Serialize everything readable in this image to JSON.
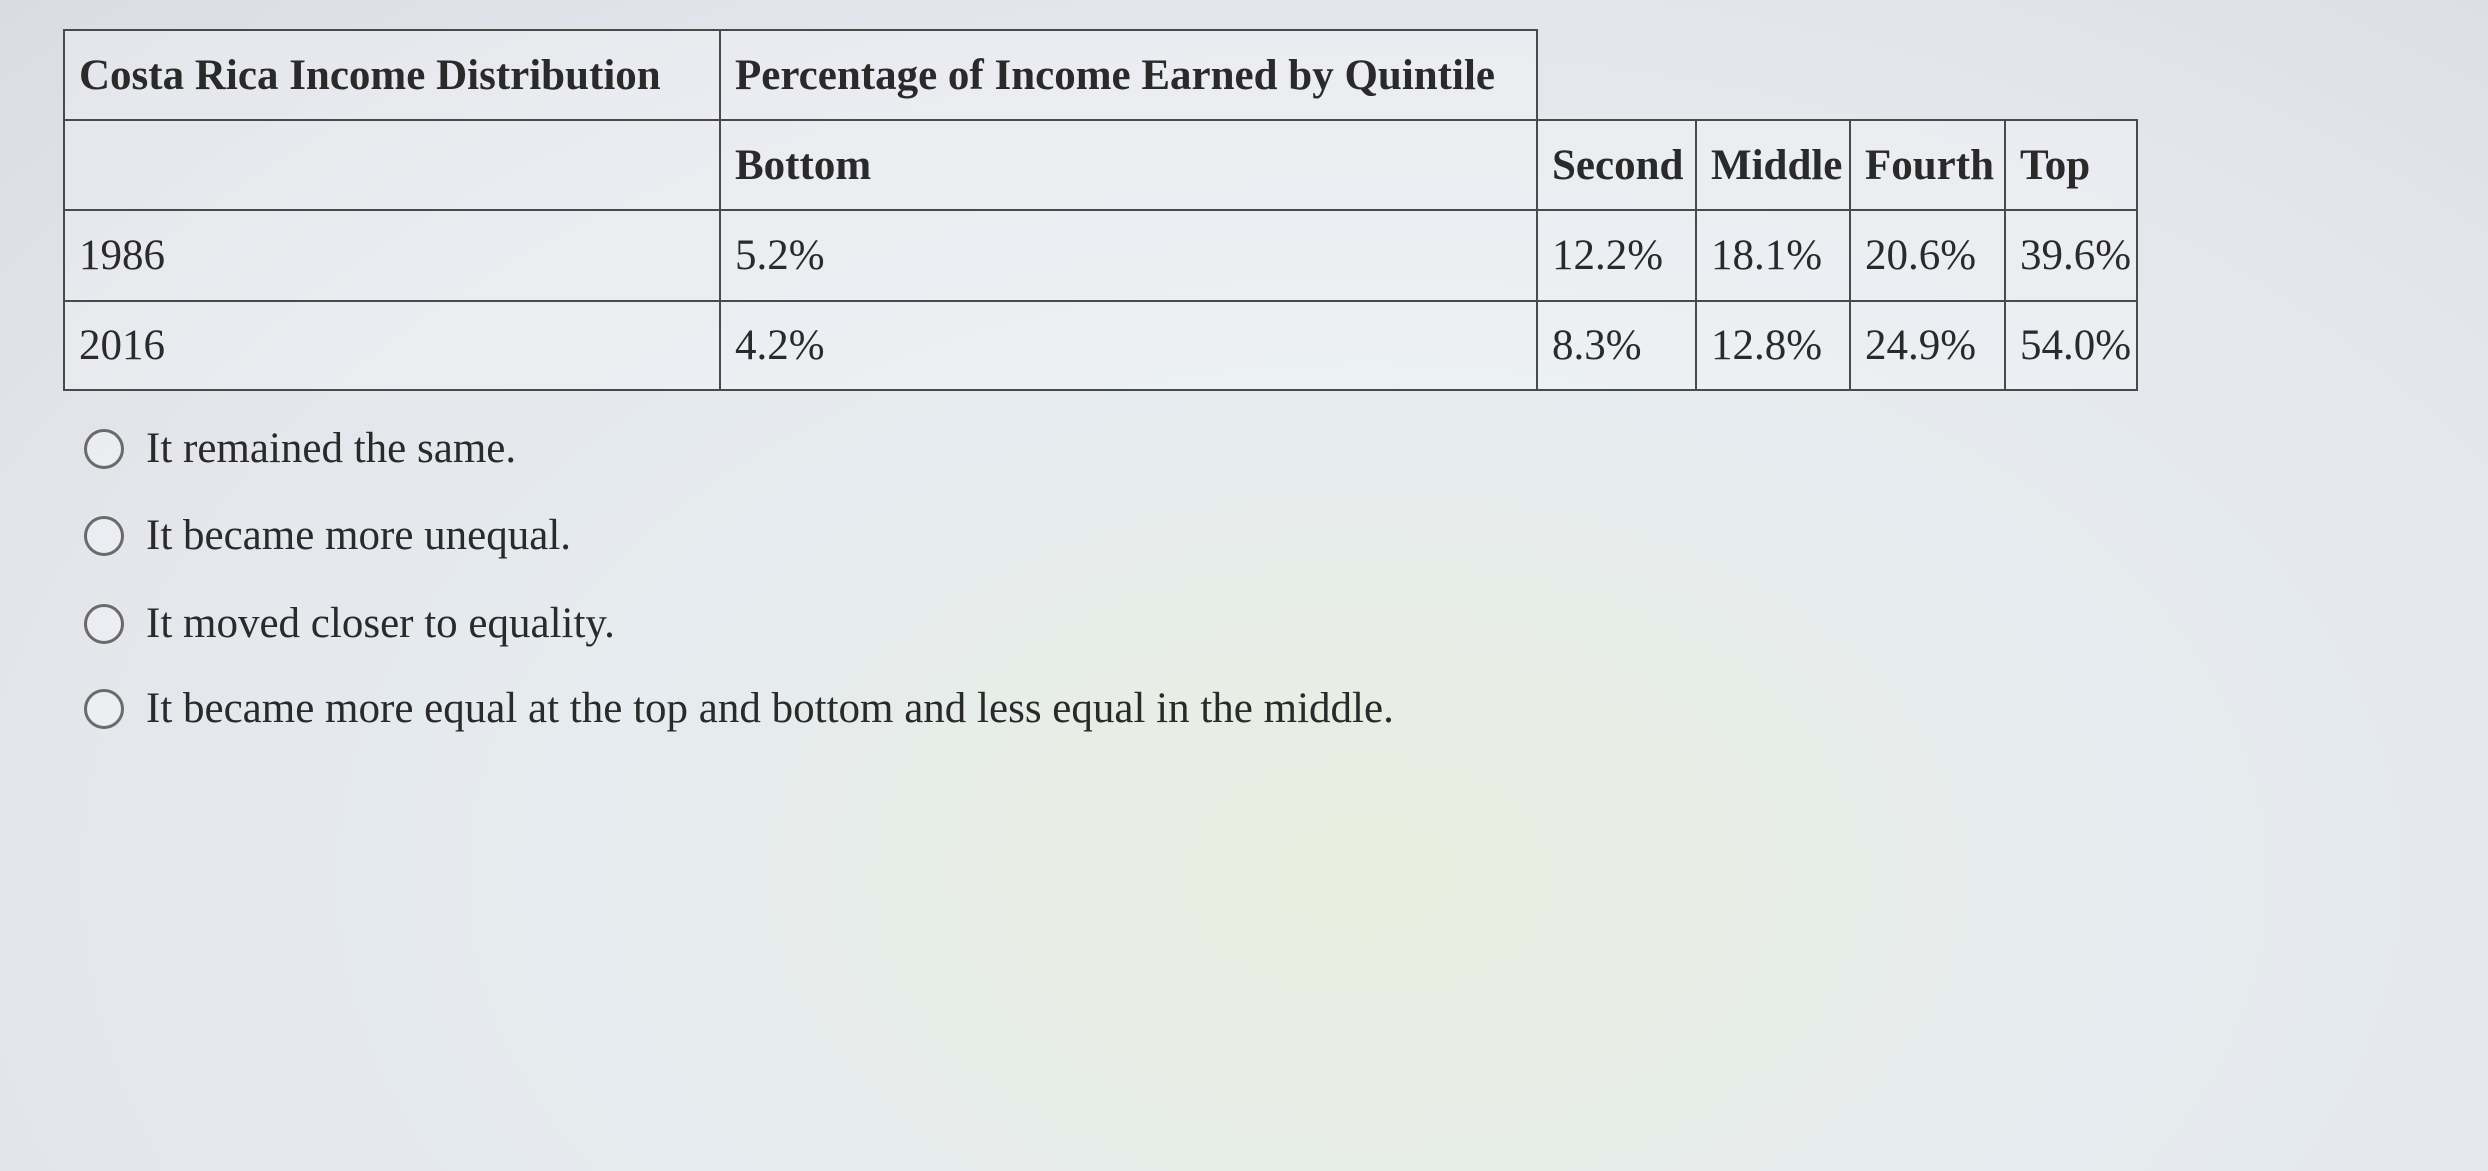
{
  "table": {
    "header": [
      "Costa Rica Income Distribution",
      "Percentage of Income Earned by Quintile"
    ],
    "columns": [
      "",
      "Bottom",
      "Second",
      "Middle",
      "Fourth",
      "Top"
    ],
    "rows": [
      [
        "1986",
        "5.2%",
        "12.2%",
        "18.1%",
        "20.6%",
        "39.6%"
      ],
      [
        "2016",
        "4.2%",
        "8.3%",
        "12.8%",
        "24.9%",
        "54.0%"
      ]
    ]
  },
  "options": [
    "It remained the same.",
    "It became more unequal.",
    "It moved closer to equality.",
    "It became more equal at the top and bottom and less equal in the middle."
  ]
}
